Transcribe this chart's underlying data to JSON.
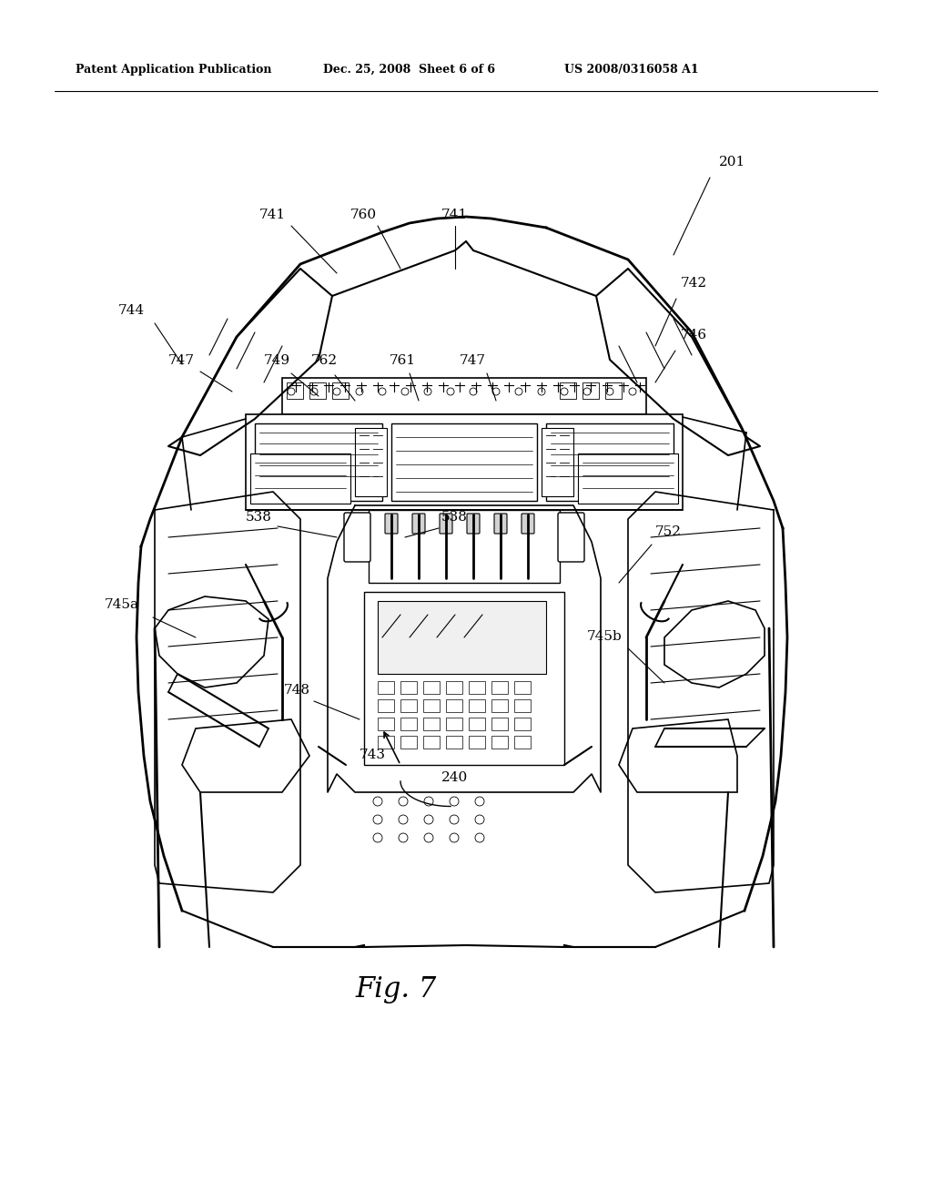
{
  "background_color": "#ffffff",
  "header_left": "Patent Application Publication",
  "header_center": "Dec. 25, 2008  Sheet 6 of 6",
  "header_right": "US 2008/0316058 A1",
  "fig_label": "Fig. 7",
  "line_color": "#000000",
  "text_color": "#000000"
}
